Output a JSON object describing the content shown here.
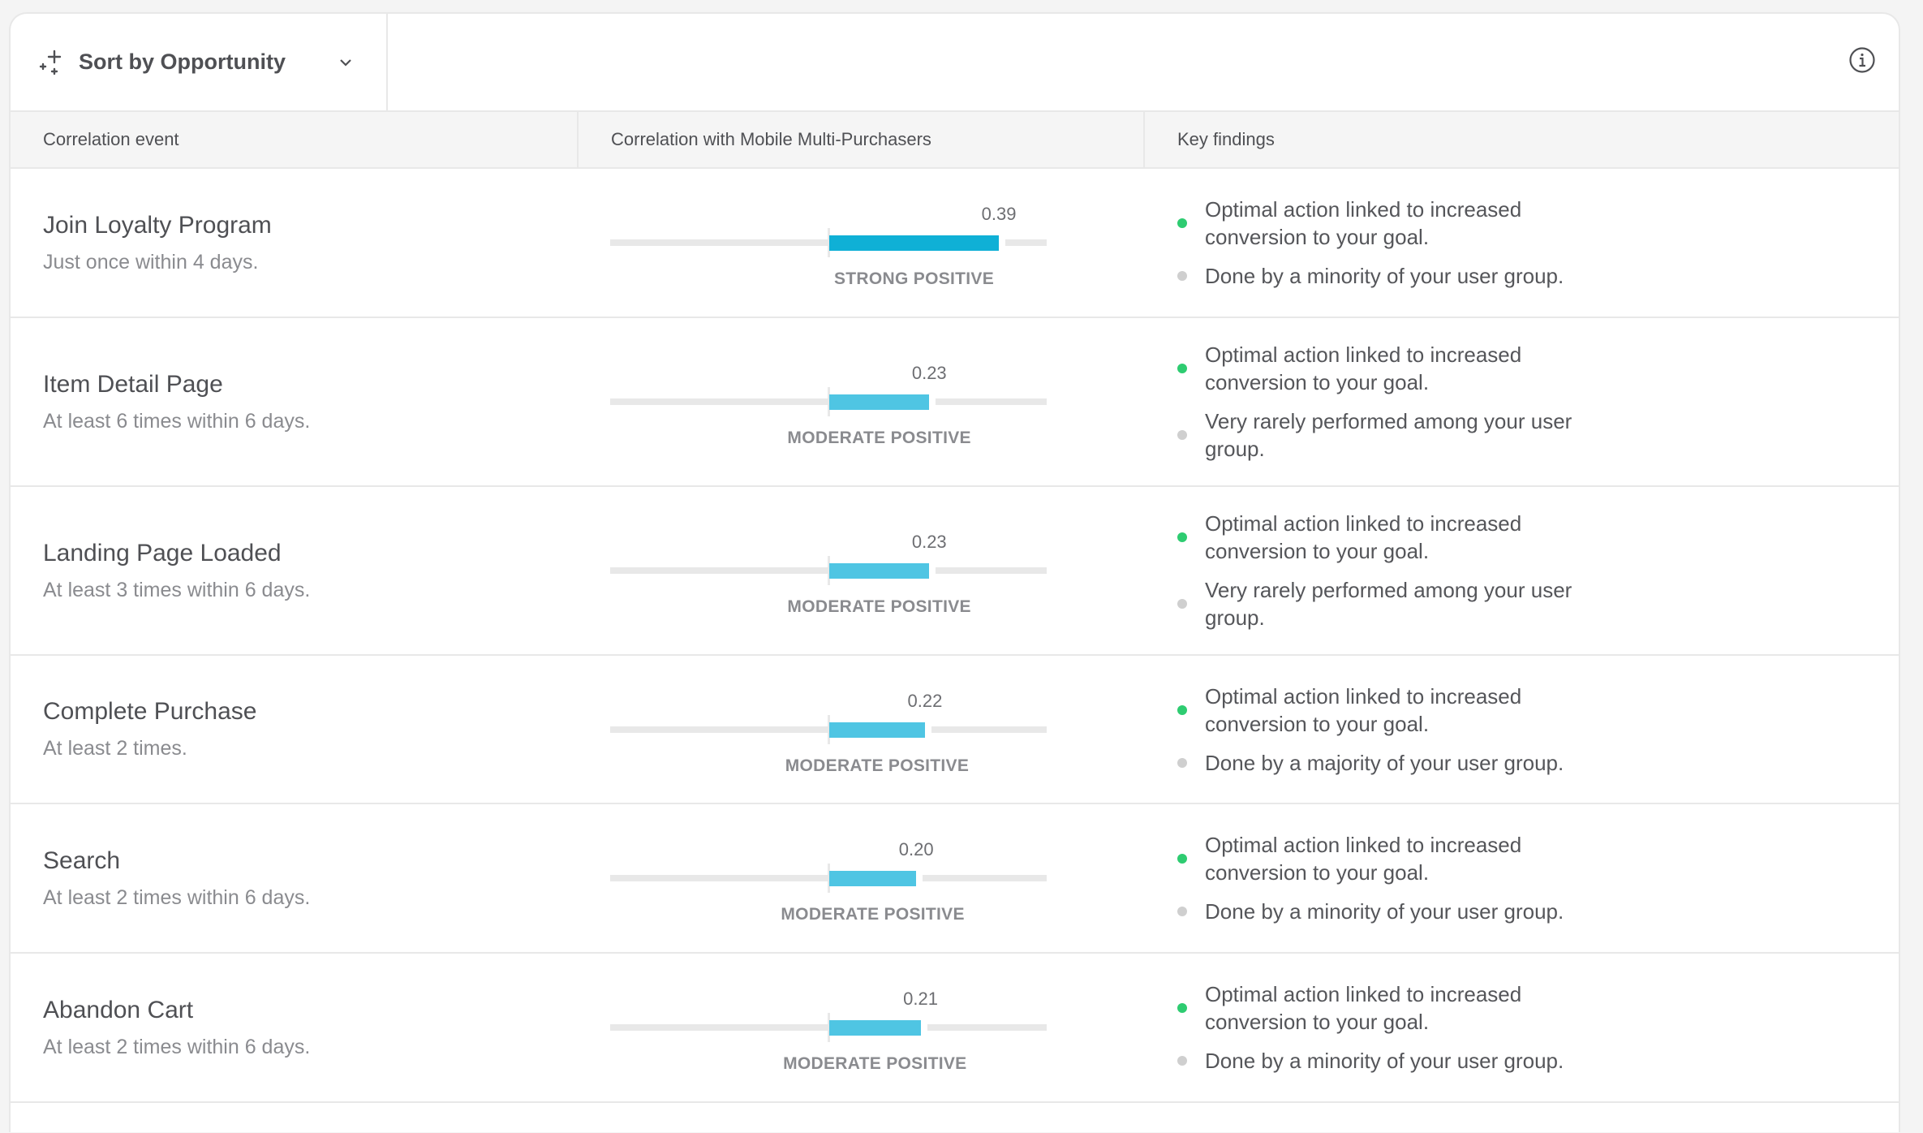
{
  "toolbar": {
    "sort_label": "Sort by Opportunity"
  },
  "columns": {
    "event": "Correlation event",
    "correlation": "Correlation with Mobile Multi-Purchasers",
    "findings": "Key findings"
  },
  "colors": {
    "strong": "#0fb0d6",
    "moderate": "#4fc5e3",
    "positive_dot": "#2ecc71",
    "neutral_dot": "#cfcfcf"
  },
  "rows": [
    {
      "title": "Join Loyalty Program",
      "subtitle": "Just once within 4 days.",
      "value": 0.39,
      "value_label": "0.39",
      "strength": "STRONG POSITIVE",
      "level": "strong",
      "findings": [
        {
          "type": "positive",
          "text": "Optimal action linked to increased conversion to your goal."
        },
        {
          "type": "neutral",
          "text": "Done by a minority of your user group."
        }
      ]
    },
    {
      "title": "Item Detail Page",
      "subtitle": "At least 6 times within 6 days.",
      "value": 0.23,
      "value_label": "0.23",
      "strength": "MODERATE POSITIVE",
      "level": "moderate",
      "findings": [
        {
          "type": "positive",
          "text": "Optimal action linked to increased conversion to your goal."
        },
        {
          "type": "neutral",
          "text": "Very rarely performed among your user group."
        }
      ]
    },
    {
      "title": "Landing Page Loaded",
      "subtitle": "At least 3 times within 6 days.",
      "value": 0.23,
      "value_label": "0.23",
      "strength": "MODERATE POSITIVE",
      "level": "moderate",
      "findings": [
        {
          "type": "positive",
          "text": "Optimal action linked to increased conversion to your goal."
        },
        {
          "type": "neutral",
          "text": "Very rarely performed among your user group."
        }
      ]
    },
    {
      "title": "Complete Purchase",
      "subtitle": "At least 2 times.",
      "value": 0.22,
      "value_label": "0.22",
      "strength": "MODERATE POSITIVE",
      "level": "moderate",
      "findings": [
        {
          "type": "positive",
          "text": "Optimal action linked to increased conversion to your goal."
        },
        {
          "type": "neutral",
          "text": "Done by a majority of your user group."
        }
      ]
    },
    {
      "title": "Search",
      "subtitle": "At least 2 times within 6 days.",
      "value": 0.2,
      "value_label": "0.20",
      "strength": "MODERATE POSITIVE",
      "level": "moderate",
      "findings": [
        {
          "type": "positive",
          "text": "Optimal action linked to increased conversion to your goal."
        },
        {
          "type": "neutral",
          "text": "Done by a minority of your user group."
        }
      ]
    },
    {
      "title": "Abandon Cart",
      "subtitle": "At least 2 times within 6 days.",
      "value": 0.21,
      "value_label": "0.21",
      "strength": "MODERATE POSITIVE",
      "level": "moderate",
      "findings": [
        {
          "type": "positive",
          "text": "Optimal action linked to increased conversion to your goal."
        },
        {
          "type": "neutral",
          "text": "Done by a minority of your user group."
        }
      ]
    }
  ]
}
